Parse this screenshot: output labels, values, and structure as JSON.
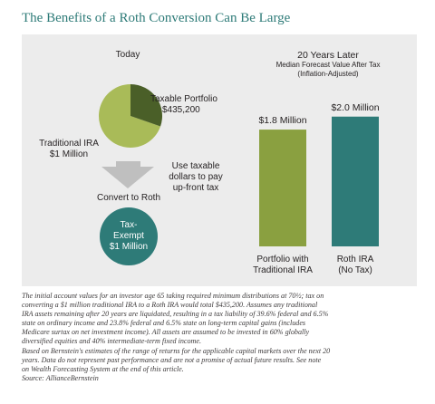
{
  "title": "The Benefits of a Roth Conversion Can Be Large",
  "left": {
    "heading": "Today",
    "taxable_label_1": "Taxable Portfolio",
    "taxable_label_2": "$435,200",
    "traditional_label_1": "Traditional IRA",
    "traditional_label_2": "$1 Million",
    "arrow_note_1": "Use taxable",
    "arrow_note_2": "dollars to pay",
    "arrow_note_3": "up-front tax",
    "convert_label": "Convert to Roth",
    "circle_1": "Tax-",
    "circle_2": "Exempt",
    "circle_3": "$1 Million",
    "colors": {
      "pie_main": "#a9bb58",
      "pie_slice": "#4a5f28",
      "arrow": "#bfbfbf",
      "circle": "#2e7b78"
    }
  },
  "right": {
    "heading_1": "20 Years Later",
    "heading_2": "Median Forecast Value After Tax",
    "heading_3": "(Inflation-Adjusted)"
  },
  "chart_data": [
    {
      "type": "pie",
      "title": "Today",
      "slices": [
        {
          "name": "Traditional IRA",
          "value": 1000000
        },
        {
          "name": "Taxable Portfolio",
          "value": 435200
        }
      ],
      "colors": [
        "#a9bb58",
        "#4a5f28"
      ]
    },
    {
      "type": "bar",
      "title": "20 Years Later",
      "subtitle": "Median Forecast Value After Tax (Inflation-Adjusted)",
      "categories": [
        "Portfolio with Traditional IRA",
        "Roth IRA (No Tax)"
      ],
      "category_lines": [
        [
          "Portfolio with",
          "Traditional IRA"
        ],
        [
          "Roth IRA",
          "(No Tax)"
        ]
      ],
      "values": [
        1.8,
        2.0
      ],
      "value_labels": [
        "$1.8 Million",
        "$2.0 Million"
      ],
      "unit": "Million USD",
      "ylim": [
        0,
        2.15
      ],
      "colors": [
        "#8aa040",
        "#2e7b78"
      ],
      "grid": false,
      "legend": "none"
    }
  ],
  "footnote": [
    "The initial account values for an investor age 65 taking required minimum distributions at 70½; tax on",
    "converting a $1 million traditional IRA to a Roth IRA would total $435,200. Assumes any traditional",
    "IRA assets remaining after 20 years are liquidated, resulting in a tax liability of 39.6% federal and 6.5%",
    "state on ordinary income and 23.8% federal and 6.5% state on long-term capital gains (includes",
    "Medicare surtax on net investment income). All assets are assumed to be invested in 60% globally",
    "diversified equities and 40% intermediate-term fixed income.",
    "Based on Bernstein's estimates of the range of returns for the applicable capital markets over the next 20",
    "years. Data do not represent past performance and are not a promise of actual future results. See note",
    "on Wealth Forecasting System at the end of this article.",
    "Source: AllianceBernstein"
  ]
}
